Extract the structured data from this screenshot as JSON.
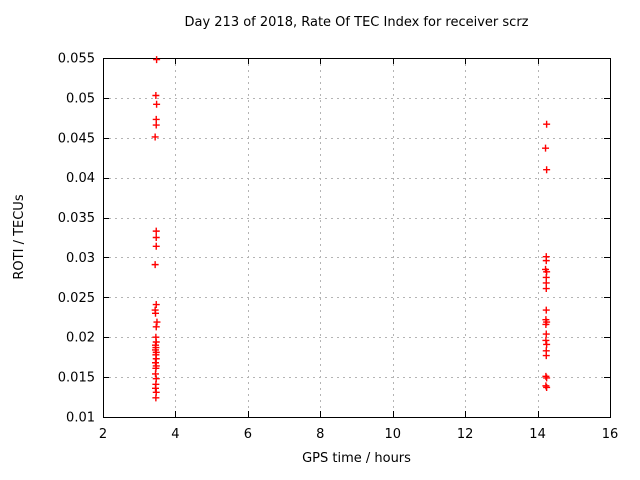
{
  "chart_data": {
    "type": "scatter",
    "title": "Day 213 of 2018, Rate Of TEC Index for receiver scrz",
    "xlabel": "GPS time / hours",
    "ylabel": "ROTI / TECUs",
    "xlim": [
      2,
      16
    ],
    "ylim": [
      0.01,
      0.055
    ],
    "xticks": [
      2,
      4,
      6,
      8,
      10,
      12,
      14,
      16
    ],
    "xtick_labels": [
      "2",
      "4",
      "6",
      "8",
      "10",
      "12",
      "14",
      "16"
    ],
    "yticks": [
      0.01,
      0.015,
      0.02,
      0.025,
      0.03,
      0.035,
      0.04,
      0.045,
      0.05,
      0.055
    ],
    "ytick_labels": [
      "0.01",
      "0.015",
      "0.02",
      "0.025",
      "0.03",
      "0.035",
      "0.04",
      "0.045",
      "0.05",
      "0.055"
    ],
    "grid": true,
    "legend_position": "none",
    "marker": "plus",
    "marker_color": "#ff0000",
    "grid_color": "#b4b4b4",
    "frame_color": "#000000",
    "series": [
      {
        "name": "ROTI",
        "points": [
          [
            3.48,
            0.0548
          ],
          [
            3.46,
            0.0503
          ],
          [
            3.48,
            0.0492
          ],
          [
            3.47,
            0.0473
          ],
          [
            3.47,
            0.0466
          ],
          [
            3.44,
            0.0451
          ],
          [
            3.47,
            0.0333
          ],
          [
            3.47,
            0.0325
          ],
          [
            3.47,
            0.0314
          ],
          [
            3.44,
            0.0291
          ],
          [
            3.47,
            0.0241
          ],
          [
            3.44,
            0.0234
          ],
          [
            3.45,
            0.023
          ],
          [
            3.49,
            0.0219
          ],
          [
            3.47,
            0.0213
          ],
          [
            3.46,
            0.02
          ],
          [
            3.47,
            0.0194
          ],
          [
            3.45,
            0.019
          ],
          [
            3.46,
            0.0187
          ],
          [
            3.45,
            0.0184
          ],
          [
            3.47,
            0.0181
          ],
          [
            3.46,
            0.0178
          ],
          [
            3.47,
            0.0173
          ],
          [
            3.45,
            0.0168
          ],
          [
            3.47,
            0.0164
          ],
          [
            3.46,
            0.0161
          ],
          [
            3.45,
            0.0154
          ],
          [
            3.47,
            0.0148
          ],
          [
            3.46,
            0.0141
          ],
          [
            3.45,
            0.0136
          ],
          [
            3.47,
            0.0131
          ],
          [
            3.46,
            0.0124
          ],
          [
            14.25,
            0.0467
          ],
          [
            14.22,
            0.0437
          ],
          [
            14.25,
            0.041
          ],
          [
            14.24,
            0.0301
          ],
          [
            14.24,
            0.0296
          ],
          [
            14.22,
            0.0285
          ],
          [
            14.25,
            0.0282
          ],
          [
            14.24,
            0.0275
          ],
          [
            14.24,
            0.0268
          ],
          [
            14.24,
            0.0261
          ],
          [
            14.24,
            0.0234
          ],
          [
            14.23,
            0.0222
          ],
          [
            14.25,
            0.0219
          ],
          [
            14.23,
            0.0216
          ],
          [
            14.24,
            0.0204
          ],
          [
            14.23,
            0.0196
          ],
          [
            14.25,
            0.0191
          ],
          [
            14.24,
            0.0183
          ],
          [
            14.24,
            0.0177
          ],
          [
            14.23,
            0.0151
          ],
          [
            14.25,
            0.0149
          ],
          [
            14.23,
            0.0139
          ],
          [
            14.25,
            0.0137
          ]
        ]
      }
    ]
  }
}
